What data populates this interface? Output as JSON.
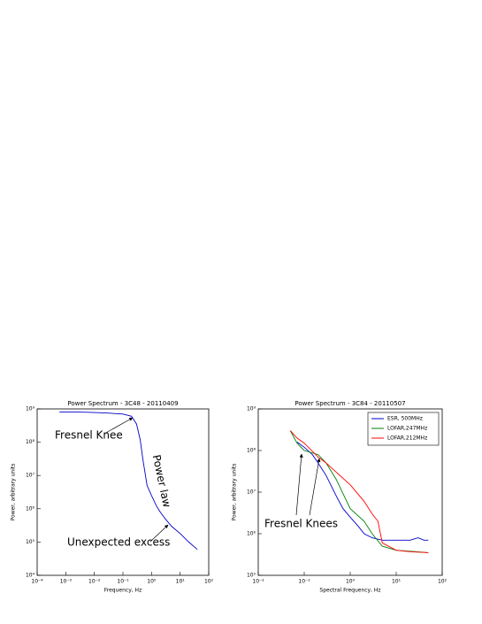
{
  "chart_data": [
    {
      "type": "line",
      "title": "Power Spectrum - 3C48 - 20110409",
      "xlabel": "Frequency, Hz",
      "ylabel": "Power, arbitrary units",
      "xscale": "log",
      "yscale": "log",
      "xlim": [
        0.0001,
        100
      ],
      "ylim": [
        10000,
        1000000000
      ],
      "xticks": [
        {
          "value": 0.0001,
          "label": "10⁻⁴"
        },
        {
          "value": 0.001,
          "label": "10⁻³"
        },
        {
          "value": 0.01,
          "label": "10⁻²"
        },
        {
          "value": 0.1,
          "label": "10⁻¹"
        },
        {
          "value": 1,
          "label": "10⁰"
        },
        {
          "value": 10,
          "label": "10¹"
        },
        {
          "value": 100,
          "label": "10²"
        }
      ],
      "yticks": [
        {
          "value": 10000,
          "label": "10⁴"
        },
        {
          "value": 100000,
          "label": "10⁵"
        },
        {
          "value": 1000000,
          "label": "10⁶"
        },
        {
          "value": 10000000,
          "label": "10⁷"
        },
        {
          "value": 100000000,
          "label": "10⁸"
        },
        {
          "value": 1000000000,
          "label": "10⁹"
        }
      ],
      "series": [
        {
          "color": "#0000cc",
          "x": [
            0.0006,
            0.001,
            0.003,
            0.01,
            0.03,
            0.1,
            0.2,
            0.3,
            0.4,
            0.5,
            0.7,
            1,
            1.5,
            2,
            3,
            5,
            10,
            20,
            40
          ],
          "values": [
            800000000,
            800000000,
            800000000,
            780000000,
            750000000,
            700000000,
            600000000,
            350000000,
            120000000,
            30000000,
            5000000,
            2500000,
            1200000,
            800000,
            500000,
            300000,
            180000,
            100000,
            60000
          ]
        }
      ],
      "annotations": [
        "Fresnel Knee",
        "Power law",
        "Unexpected excess"
      ]
    },
    {
      "type": "line",
      "title": "Power Spectrum - 3C84 - 20110507",
      "xlabel": "Spectral Frequency, Hz",
      "ylabel": "Power, arbitrary units",
      "xscale": "log",
      "yscale": "log",
      "xlim": [
        0.01,
        100
      ],
      "ylim": [
        100000,
        1000000000
      ],
      "legend": "upper right",
      "xticks": [
        {
          "value": 0.01,
          "label": "10⁻²"
        },
        {
          "value": 0.1,
          "label": "10⁻¹"
        },
        {
          "value": 1,
          "label": "10⁰"
        },
        {
          "value": 10,
          "label": "10¹"
        },
        {
          "value": 100,
          "label": "10²"
        }
      ],
      "yticks": [
        {
          "value": 100000,
          "label": "10⁵"
        },
        {
          "value": 1000000,
          "label": "10⁶"
        },
        {
          "value": 10000000,
          "label": "10⁷"
        },
        {
          "value": 100000000,
          "label": "10⁸"
        },
        {
          "value": 1000000000,
          "label": "10⁹"
        }
      ],
      "series": [
        {
          "name": "ESR, 500MHz",
          "color": "#0000cc",
          "x": [
            0.07,
            0.1,
            0.15,
            0.2,
            0.3,
            0.5,
            0.7,
            1,
            1.5,
            2,
            3,
            5,
            10,
            20,
            30,
            40,
            50
          ],
          "values": [
            160000000,
            120000000,
            80000000,
            50000000,
            25000000,
            8000000,
            4000000,
            2500000,
            1500000,
            1000000,
            800000,
            700000,
            700000,
            700000,
            800000,
            700000,
            700000
          ]
        },
        {
          "name": "LOFAR,247MHz",
          "color": "#008000",
          "x": [
            0.05,
            0.07,
            0.1,
            0.2,
            0.3,
            0.5,
            1,
            2,
            3,
            5,
            10,
            20,
            50
          ],
          "values": [
            300000000,
            150000000,
            100000000,
            80000000,
            50000000,
            20000000,
            4000000,
            2000000,
            1000000,
            500000,
            400000,
            380000,
            350000
          ]
        },
        {
          "name": "LOFAR,212MHz",
          "color": "#ff0000",
          "x": [
            0.05,
            0.07,
            0.1,
            0.2,
            0.3,
            0.5,
            1,
            2,
            3,
            4,
            5,
            10,
            20,
            50
          ],
          "values": [
            300000000,
            200000000,
            150000000,
            70000000,
            50000000,
            30000000,
            15000000,
            6000000,
            3000000,
            2000000,
            600000,
            400000,
            370000,
            350000
          ]
        }
      ],
      "annotations": [
        "Fresnel Knees"
      ]
    }
  ]
}
